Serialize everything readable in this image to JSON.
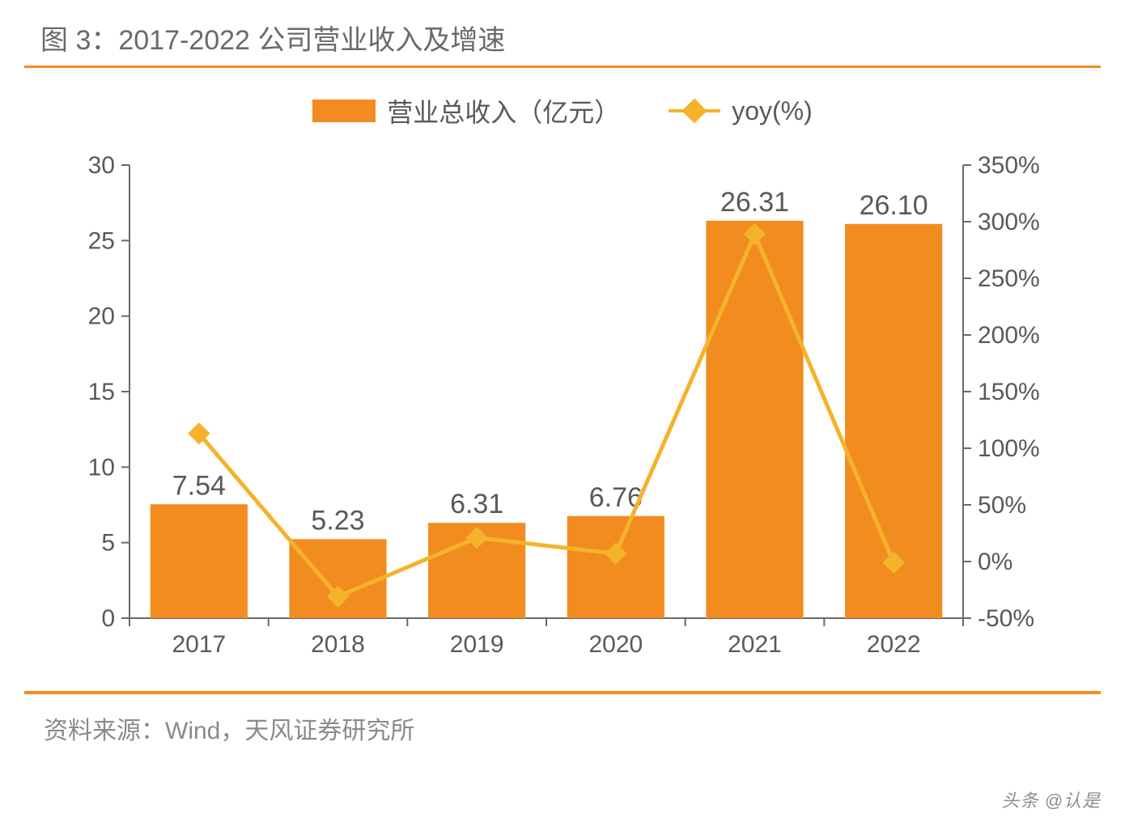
{
  "title": "图 3：2017-2022 公司营业收入及增速",
  "source_label": "资料来源：Wind，天风证券研究所",
  "watermark": "头条 @认是",
  "accent_color": "#f28c1f",
  "text_color": "#595959",
  "legend": {
    "bar_label": "营业总收入（亿元）",
    "line_label": "yoy(%)"
  },
  "chart": {
    "type": "bar+line",
    "categories": [
      "2017",
      "2018",
      "2019",
      "2020",
      "2021",
      "2022"
    ],
    "bar_values": [
      7.54,
      5.23,
      6.31,
      6.76,
      26.31,
      26.1
    ],
    "bar_labels": [
      "7.54",
      "5.23",
      "6.31",
      "6.76",
      "26.31",
      "26.10"
    ],
    "line_values_pct": [
      113,
      -31,
      21,
      7,
      289,
      -1
    ],
    "y_left": {
      "min": 0,
      "max": 30,
      "ticks": [
        0,
        5,
        10,
        15,
        20,
        25,
        30
      ]
    },
    "y_right": {
      "min": -50,
      "max": 350,
      "ticks": [
        -50,
        0,
        50,
        100,
        150,
        200,
        250,
        300,
        350
      ],
      "suffix": "%"
    },
    "bar_color": "#f28c1f",
    "line_color": "#f5b32b",
    "axis_color": "#6a6a6a",
    "tick_label_color": "#595959",
    "data_label_color": "#595959",
    "tick_font_size": 30,
    "data_label_font_size": 34,
    "bar_width_ratio": 0.7,
    "marker_size": 13,
    "line_width": 5,
    "background_color": "#ffffff"
  }
}
